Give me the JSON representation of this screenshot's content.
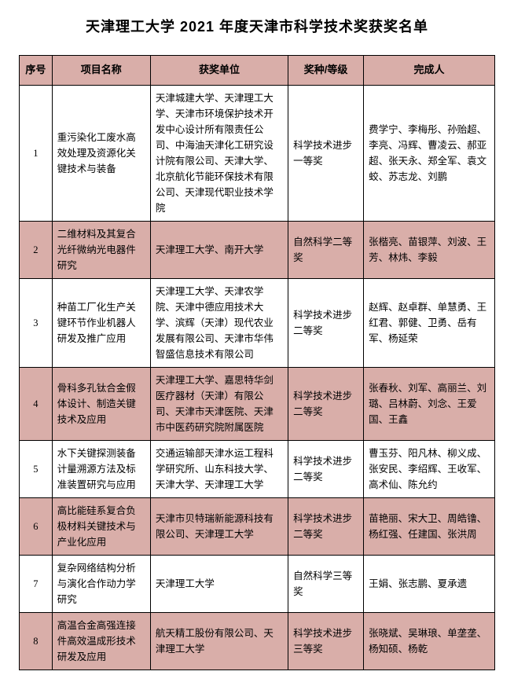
{
  "title": "天津理工大学 2021 年度天津市科学技术奖获奖名单",
  "columns": [
    "序号",
    "项目名称",
    "获奖单位",
    "奖种/等级",
    "完成人"
  ],
  "rows": [
    {
      "idx": "1",
      "name": "重污染化工废水高效处理及资源化关键技术与装备",
      "org": "天津城建大学、天津理工大学、天津市环境保护技术开发中心设计所有限责任公司、中海油天津化工研究设计院有限公司、天津大学、北京航化节能环保技术有限公司、天津现代职业技术学院",
      "award": "科学技术进步一等奖",
      "people": "费学宁、李梅彤、孙贻超、李亮、冯辉、曹凌云、郝亚超、张天永、郑全军、袁文蛟、苏志龙、刘鹏"
    },
    {
      "idx": "2",
      "name": "二维材料及其复合光纤微纳光电器件研究",
      "org": "天津理工大学、南开大学",
      "award": "自然科学二等奖",
      "people": "张楷亮、苗银萍、刘波、王芳、林炜、李毅"
    },
    {
      "idx": "3",
      "name": "种苗工厂化生产关键环节作业机器人研发及推广应用",
      "org": "天津理工大学、天津农学院、天津中德应用技术大学、滨辉（天津）现代农业发展有限公司、天津市华伟智盛信息技术有限公司",
      "award": "科学技术进步二等奖",
      "people": "赵辉、赵卓群、单慧勇、王红君、郭健、卫勇、岳有军、杨延荣"
    },
    {
      "idx": "4",
      "name": "骨科多孔钛合金假体设计、制造关键技术及应用",
      "org": "天津理工大学、嘉思特华剑医疗器材（天津）有限公司、天津市天津医院、天津市中医药研究院附属医院",
      "award": "科学技术进步二等奖",
      "people": "张春秋、刘军、高丽兰、刘璐、吕林蔚、刘念、王爱国、王鑫"
    },
    {
      "idx": "5",
      "name": "水下关键探测装备计量溯源方法及标准装置研究与应用",
      "org": "交通运输部天津水运工程科学研究所、山东科技大学、天津大学、天津理工大学",
      "award": "科学技术进步二等奖",
      "people": "曹玉芬、阳凡林、柳义成、张安民、李绍辉、王收军、高术仙、陈允约"
    },
    {
      "idx": "6",
      "name": "高比能硅系复合负极材料关键技术与产业化应用",
      "org": "天津市贝特瑞新能源科技有限公司、天津理工大学",
      "award": "科学技术进步二等奖",
      "people": "苗艳丽、宋大卫、周皓镥、杨红强、任建国、张洪周"
    },
    {
      "idx": "7",
      "name": "复杂网络结构分析与演化合作动力学研究",
      "org": "天津理工大学",
      "award": "自然科学三等奖",
      "people": "王娟、张志鹏、夏承遗"
    },
    {
      "idx": "8",
      "name": "高温合金高强连接件高效温成形技术研发及应用",
      "org": "航天精工股份有限公司、天津理工大学",
      "award": "科学技术进步三等奖",
      "people": "张晓斌、吴琳琅、单垄垄、杨知硕、杨乾"
    }
  ],
  "alt_rows": [
    2,
    4,
    6,
    8
  ],
  "colors": {
    "header_bg": "#d9aea9",
    "alt_bg": "#d9aea9",
    "border": "#000000",
    "text": "#000000",
    "background": "#ffffff"
  },
  "fonts": {
    "title_size_pt": 18,
    "cell_size_pt": 12.5,
    "header_size_pt": 13
  }
}
